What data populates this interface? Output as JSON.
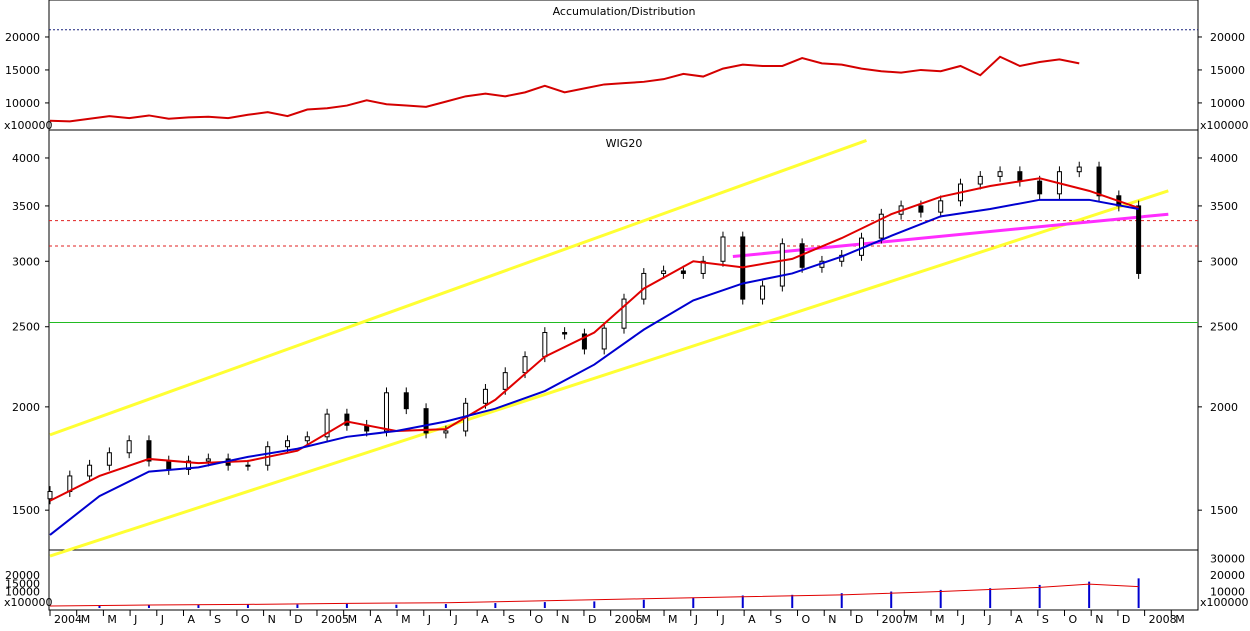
{
  "chart_data": [
    {
      "panel": "top",
      "type": "line",
      "title": "Accumulation/Distribution",
      "multiplier_label": "x100000",
      "y_ticks": [
        10000,
        15000,
        20000
      ],
      "reference_level": 21100,
      "series": [
        {
          "name": "",
          "color": "#d40000",
          "x": [
            0,
            4,
            8,
            12,
            16,
            20,
            24,
            28,
            32,
            36,
            40,
            44,
            48,
            52,
            56,
            60,
            64,
            68,
            72,
            76,
            80,
            84,
            88,
            92,
            96,
            100,
            104,
            108,
            112,
            116,
            120,
            124,
            128,
            132,
            136,
            140,
            144,
            148,
            152,
            156,
            160,
            164,
            168,
            172,
            176,
            180,
            184,
            188,
            192,
            196,
            200,
            204,
            208
          ],
          "values": [
            7300,
            7200,
            7600,
            8000,
            7700,
            8100,
            7600,
            7800,
            7900,
            7700,
            8200,
            8600,
            8000,
            9000,
            9200,
            9600,
            10400,
            9800,
            9600,
            9400,
            10200,
            11000,
            11400,
            11000,
            11600,
            12600,
            11600,
            12200,
            12800,
            13000,
            13200,
            13600,
            14400,
            14000,
            15200,
            15800,
            15600,
            15600,
            16800,
            16000,
            15800,
            15200,
            14800,
            14600,
            15000,
            14800,
            15600,
            14200,
            17000,
            15600,
            16200,
            16600,
            16000
          ]
        }
      ]
    },
    {
      "panel": "main",
      "type": "line",
      "title": "WIG20",
      "y_ticks": [
        1500,
        2000,
        2500,
        3000,
        3500,
        4000
      ],
      "x_labels": [
        "2004",
        "M",
        "M",
        "J",
        "J",
        "A",
        "S",
        "O",
        "N",
        "D",
        "2005",
        "M",
        "A",
        "M",
        "J",
        "J",
        "A",
        "S",
        "O",
        "N",
        "D",
        "2006",
        "M",
        "M",
        "J",
        "J",
        "A",
        "S",
        "O",
        "N",
        "D",
        "2007",
        "M",
        "M",
        "J",
        "J",
        "A",
        "S",
        "O",
        "N",
        "D",
        "2008",
        "M"
      ],
      "horizontal_levels": [
        {
          "value": 3360,
          "color": "#e02020",
          "style": "dashed"
        },
        {
          "value": 3130,
          "color": "#e02020",
          "style": "dashed"
        },
        {
          "value": 2530,
          "color": "#22bb22",
          "style": "solid"
        }
      ],
      "series": [
        {
          "name": "",
          "color": "#000000",
          "style": "candles",
          "x": [
            0,
            4,
            8,
            12,
            16,
            20,
            24,
            28,
            32,
            36,
            40,
            44,
            48,
            52,
            56,
            60,
            64,
            68,
            72,
            76,
            80,
            84,
            88,
            92,
            96,
            100,
            104,
            108,
            112,
            116,
            120,
            124,
            128,
            132,
            136,
            140,
            144,
            148,
            152,
            156,
            160,
            164,
            168,
            172,
            176,
            180,
            184,
            188,
            192,
            196,
            200,
            204,
            208,
            212,
            216,
            220
          ],
          "values": [
            1580,
            1650,
            1700,
            1760,
            1820,
            1720,
            1680,
            1720,
            1730,
            1700,
            1700,
            1790,
            1820,
            1840,
            1960,
            1900,
            1870,
            2080,
            1990,
            1860,
            1870,
            2020,
            2100,
            2200,
            2300,
            2460,
            2450,
            2350,
            2490,
            2700,
            2900,
            2920,
            2900,
            3000,
            3210,
            2700,
            2800,
            3150,
            2950,
            3000,
            3050,
            3200,
            3420,
            3500,
            3440,
            3550,
            3720,
            3800,
            3850,
            3750,
            3620,
            3850,
            3900,
            3600,
            3500,
            2900
          ]
        },
        {
          "name": "",
          "color": "#e00000",
          "style": "line",
          "x": [
            0,
            10,
            20,
            30,
            40,
            50,
            60,
            70,
            80,
            90,
            100,
            110,
            120,
            130,
            140,
            150,
            160,
            170,
            180,
            190,
            200,
            210,
            220
          ],
          "values": [
            1540,
            1650,
            1730,
            1710,
            1720,
            1770,
            1920,
            1870,
            1880,
            2040,
            2300,
            2460,
            2780,
            3000,
            2950,
            3020,
            3200,
            3420,
            3590,
            3700,
            3780,
            3650,
            3480
          ]
        },
        {
          "name": "",
          "color": "#0000d0",
          "style": "line",
          "x": [
            0,
            10,
            20,
            30,
            40,
            50,
            60,
            70,
            80,
            90,
            100,
            110,
            120,
            130,
            140,
            150,
            160,
            170,
            180,
            190,
            200,
            210,
            220
          ],
          "values": [
            1400,
            1560,
            1670,
            1690,
            1740,
            1780,
            1840,
            1870,
            1920,
            1990,
            2090,
            2250,
            2480,
            2690,
            2820,
            2900,
            3040,
            3220,
            3400,
            3470,
            3560,
            3560,
            3470
          ]
        }
      ],
      "trend_lines": [
        {
          "color": "#ffff33",
          "from": [
            0,
            1850
          ],
          "to": [
            165,
            4200
          ]
        },
        {
          "color": "#ffff33",
          "from": [
            0,
            1320
          ],
          "to": [
            226,
            3650
          ]
        },
        {
          "color": "#ff2dff",
          "from": [
            138,
            3040
          ],
          "to": [
            226,
            3420
          ]
        }
      ]
    },
    {
      "panel": "bottom",
      "type": "bar",
      "multiplier_label": "x100000",
      "y_ticks_left": [
        10000,
        15000,
        20000
      ],
      "y_ticks_right": [
        10000,
        20000,
        30000
      ],
      "series": [
        {
          "name": "",
          "color": "#0000d0",
          "style": "bars",
          "x": [
            10,
            20,
            30,
            40,
            50,
            60,
            70,
            80,
            90,
            100,
            110,
            120,
            130,
            140,
            150,
            160,
            170,
            180,
            190,
            200,
            210,
            220
          ],
          "values": [
            1500,
            2000,
            1800,
            2200,
            2100,
            2500,
            2000,
            2400,
            3000,
            3600,
            4000,
            5000,
            6400,
            7600,
            8000,
            9000,
            10000,
            11000,
            12000,
            14000,
            16000,
            18000
          ]
        },
        {
          "name": "",
          "color": "#e00000",
          "style": "line",
          "x": [
            0,
            20,
            40,
            60,
            80,
            100,
            120,
            140,
            160,
            180,
            200,
            210,
            220
          ],
          "values": [
            1200,
            1800,
            2200,
            2800,
            3200,
            4400,
            5600,
            6800,
            8000,
            10000,
            12500,
            14500,
            13000
          ]
        }
      ]
    }
  ]
}
